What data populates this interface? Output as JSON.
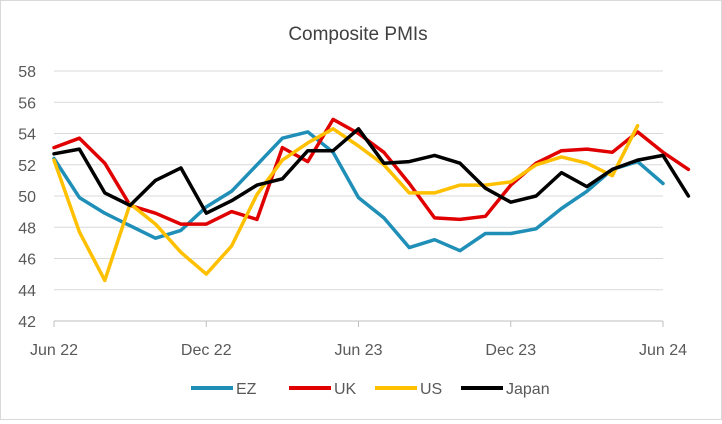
{
  "chart_data": {
    "type": "line",
    "title": "Composite PMIs",
    "xlabel": "",
    "ylabel": "",
    "ylim": [
      42,
      58
    ],
    "y_ticks": [
      "42",
      "44",
      "46",
      "48",
      "50",
      "52",
      "54",
      "56",
      "58"
    ],
    "x_tick_labels": [
      {
        "index": 0,
        "label": "Jun 22"
      },
      {
        "index": 6,
        "label": "Dec 22"
      },
      {
        "index": 12,
        "label": "Jun 23"
      },
      {
        "index": 18,
        "label": "Dec 23"
      },
      {
        "index": 24,
        "label": "Jun 24"
      }
    ],
    "grid": "horizontal",
    "legend_position": "bottom",
    "series": [
      {
        "name": "EZ",
        "color": "#1f8fb8",
        "values": [
          52.4,
          49.9,
          48.9,
          48.1,
          47.3,
          47.8,
          49.3,
          50.3,
          52.0,
          53.7,
          54.1,
          52.8,
          49.9,
          48.6,
          46.7,
          47.2,
          46.5,
          47.6,
          47.6,
          47.9,
          49.2,
          50.3,
          51.7,
          52.2,
          50.8
        ]
      },
      {
        "name": "UK",
        "color": "#e00000",
        "values": [
          53.1,
          53.7,
          52.1,
          49.4,
          48.9,
          48.2,
          48.2,
          49.0,
          48.5,
          53.1,
          52.2,
          54.9,
          54.0,
          52.8,
          50.8,
          48.6,
          48.5,
          48.7,
          50.7,
          52.1,
          52.9,
          53.0,
          52.8,
          54.1,
          52.8,
          51.7
        ]
      },
      {
        "name": "US",
        "color": "#ffc000",
        "values": [
          52.3,
          47.7,
          44.6,
          49.5,
          48.2,
          46.4,
          45.0,
          46.8,
          50.1,
          52.3,
          53.4,
          54.3,
          53.2,
          52.0,
          50.2,
          50.2,
          50.7,
          50.7,
          50.9,
          52.0,
          52.5,
          52.1,
          51.3,
          54.5
        ]
      },
      {
        "name": "Japan",
        "color": "#000000",
        "values": [
          52.7,
          53.0,
          50.2,
          49.4,
          51.0,
          51.8,
          48.9,
          49.7,
          50.7,
          51.1,
          52.9,
          52.9,
          54.3,
          52.1,
          52.2,
          52.6,
          52.1,
          50.5,
          49.6,
          50.0,
          51.5,
          50.6,
          51.7,
          52.3,
          52.6,
          50.0
        ]
      }
    ]
  }
}
